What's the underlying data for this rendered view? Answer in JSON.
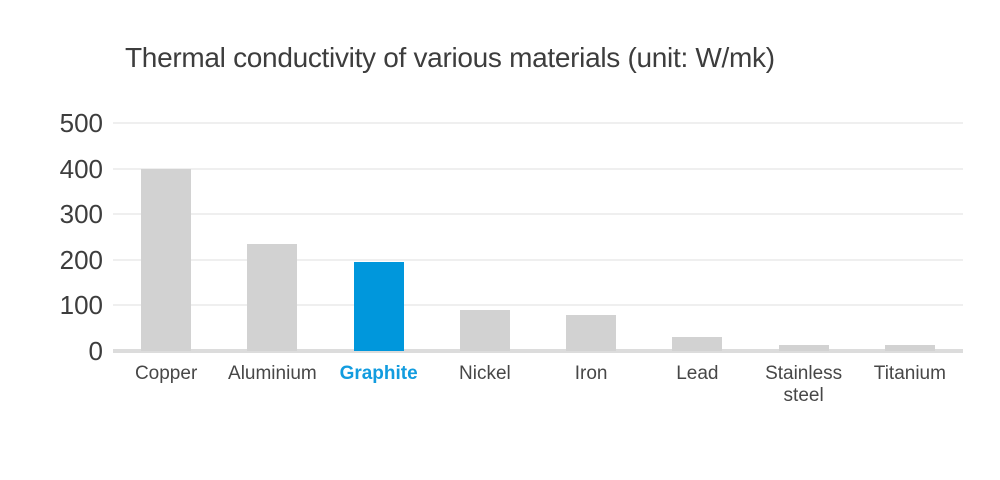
{
  "chart_data": {
    "type": "bar",
    "title": "Thermal conductivity of various materials (unit: W/mk)",
    "categories": [
      "Copper",
      "Aluminium",
      "Graphite",
      "Nickel",
      "Iron",
      "Lead",
      "Stainless steel",
      "Titanium"
    ],
    "values": [
      400,
      235,
      195,
      91,
      80,
      30,
      14,
      14
    ],
    "xlabel": "",
    "ylabel": "",
    "ylim": [
      0,
      500
    ],
    "yticks": [
      0,
      100,
      200,
      300,
      400,
      500
    ],
    "grid": true,
    "legend": false,
    "highlight_index": 2,
    "highlight_category": "Graphite",
    "colors": {
      "bar_default": "#d2d2d2",
      "bar_highlight": "#0097dc",
      "highlight_label_text": "#129cdf",
      "axis_text": "#3d3d3d",
      "gridline": "#efefef",
      "baseline": "#dcdcdc",
      "background": "#ffffff"
    }
  }
}
